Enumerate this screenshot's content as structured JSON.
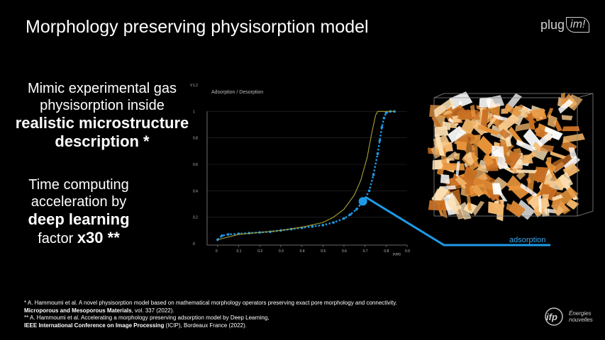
{
  "slide": {
    "title": "Morphology preserving physisorption model",
    "logo_plug": {
      "word": "plug",
      "badge": "im!"
    },
    "logo_ifp": {
      "mark": "ifp",
      "line1": "Énergies",
      "line2": "nouvelles"
    }
  },
  "claims": {
    "c1_line1": "Mimic experimental gas",
    "c1_line2": "physisorption inside",
    "c1_bold1": "realistic microstructure",
    "c1_bold2": "description *",
    "c2_line1": "Time computing",
    "c2_line2": "acceleration by",
    "c2_bold": "deep learning",
    "c2_factor": "factor",
    "c2_factor_bold": "x30 **"
  },
  "chart_data": {
    "type": "line",
    "title": "Adsorption / Desorption",
    "xlabel": "P/P0",
    "ylabel": "V",
    "xlim": [
      -0.05,
      0.9
    ],
    "ylim": [
      0,
      1.2
    ],
    "x_ticks": [
      "0",
      "0.1",
      "0.2",
      "0.3",
      "0.4",
      "0.5",
      "0.6",
      "0.7",
      "0.8",
      "0.9"
    ],
    "y_ticks": [
      "0",
      "0.2",
      "0.4",
      "0.6",
      "0.8",
      "1",
      "1.2"
    ],
    "series": [
      {
        "name": "adsorption",
        "color": "#1e9be8",
        "style": "dotted-markers",
        "x": [
          0.0,
          0.02,
          0.05,
          0.1,
          0.15,
          0.2,
          0.25,
          0.3,
          0.35,
          0.4,
          0.45,
          0.5,
          0.55,
          0.6,
          0.63,
          0.66,
          0.68,
          0.7,
          0.72,
          0.74,
          0.76,
          0.77,
          0.78,
          0.79,
          0.8,
          0.82,
          0.84
        ],
        "y": [
          0.03,
          0.06,
          0.07,
          0.075,
          0.08,
          0.085,
          0.09,
          0.1,
          0.11,
          0.12,
          0.13,
          0.14,
          0.16,
          0.19,
          0.22,
          0.26,
          0.3,
          0.34,
          0.4,
          0.52,
          0.68,
          0.78,
          0.88,
          0.95,
          0.99,
          1.0,
          1.0
        ]
      },
      {
        "name": "desorption",
        "color": "#a8a33a",
        "style": "line",
        "x": [
          0.0,
          0.1,
          0.2,
          0.3,
          0.4,
          0.5,
          0.55,
          0.6,
          0.65,
          0.68,
          0.71,
          0.73,
          0.75,
          0.76,
          0.78,
          0.8,
          0.84
        ],
        "y": [
          0.03,
          0.07,
          0.085,
          0.1,
          0.125,
          0.16,
          0.2,
          0.26,
          0.37,
          0.48,
          0.65,
          0.82,
          0.97,
          1.0,
          1.0,
          1.0,
          1.0
        ]
      }
    ],
    "highlight": {
      "x": 0.69,
      "y": 0.32,
      "color": "#1e9be8"
    },
    "callout_label": "adsorption"
  },
  "references": {
    "r1_text": "* A. Hammoumi et al. A novel physisorption model based on mathematical morphology operators preserving exact pore morphology and connectivity.",
    "r1_journal": "Microporous and Mesoporous Materials",
    "r1_rest": ", vol. 337 (2022).",
    "r2_text": "** A. Hammoumi et al. Accelerating a morphology preserving adsorption model by Deep Learning,",
    "r2_conf": "IEEE International Conference on Image Processing",
    "r2_rest": " (ICIP), Bordeaux France (2022)."
  },
  "colors": {
    "accent_blue": "#1e9be8",
    "desorption_olive": "#a8a33a",
    "particles_orange": "#e8943a"
  }
}
